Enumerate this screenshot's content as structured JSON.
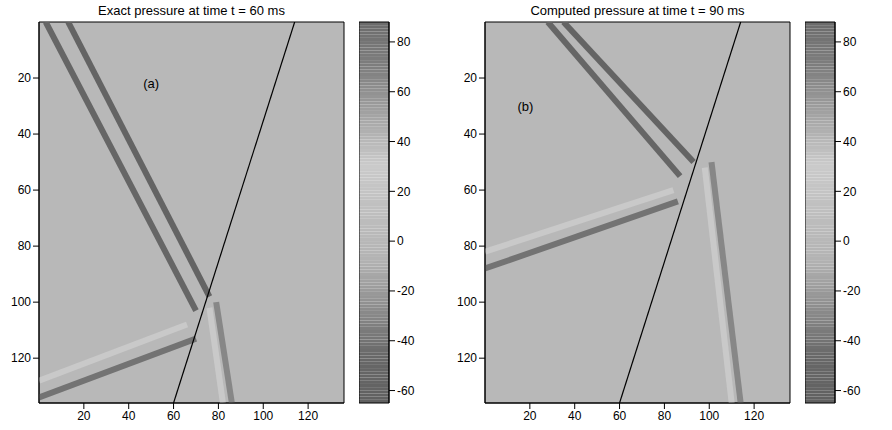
{
  "chart_data": [
    {
      "type": "heatmap",
      "title": "Exact pressure at time t = 60 ms",
      "xlim": [
        0,
        136
      ],
      "ylim": [
        136,
        0
      ],
      "xticks": [
        20,
        40,
        60,
        80,
        100,
        120
      ],
      "yticks": [
        20,
        40,
        60,
        80,
        100,
        120
      ],
      "annotations": [
        {
          "text": "(a)",
          "x": 50,
          "y": 22
        }
      ],
      "colorbar": {
        "range": [
          -65,
          88
        ],
        "ticks": [
          -60,
          -40,
          -20,
          0,
          20,
          40,
          60,
          80
        ]
      },
      "background": 40,
      "bands": [
        {
          "x": [
            3,
            70
          ],
          "y": [
            0,
            103
          ],
          "value": -50
        },
        {
          "x": [
            13,
            76
          ],
          "y": [
            0,
            98
          ],
          "value": -55
        },
        {
          "x": [
            0,
            66
          ],
          "y": [
            128,
            108
          ],
          "value": 28
        },
        {
          "x": [
            0,
            70
          ],
          "y": [
            134,
            113
          ],
          "value": -40
        },
        {
          "x": [
            76,
            82
          ],
          "y": [
            102,
            136
          ],
          "value": 28
        },
        {
          "x": [
            79,
            86
          ],
          "y": [
            100,
            136
          ],
          "value": -30
        }
      ],
      "interface": {
        "x": [
          60,
          114
        ],
        "y": [
          136,
          0
        ]
      }
    },
    {
      "type": "heatmap",
      "title": "Computed pressure at time t = 90 ms",
      "xlim": [
        0,
        136
      ],
      "ylim": [
        136,
        0
      ],
      "xticks": [
        20,
        40,
        60,
        80,
        100,
        120
      ],
      "yticks": [
        20,
        40,
        60,
        80,
        100,
        120
      ],
      "annotations": [
        {
          "text": "(b)",
          "x": 18,
          "y": 30
        }
      ],
      "colorbar": {
        "range": [
          -65,
          88
        ],
        "ticks": [
          -60,
          -40,
          -20,
          0,
          20,
          40,
          60,
          80
        ]
      },
      "background": 40,
      "bands": [
        {
          "x": [
            28,
            87
          ],
          "y": [
            0,
            55
          ],
          "value": -50
        },
        {
          "x": [
            35,
            93
          ],
          "y": [
            0,
            50
          ],
          "value": -55
        },
        {
          "x": [
            0,
            84
          ],
          "y": [
            82,
            60
          ],
          "value": 28
        },
        {
          "x": [
            0,
            86
          ],
          "y": [
            88,
            64
          ],
          "value": -40
        },
        {
          "x": [
            98,
            110
          ],
          "y": [
            52,
            136
          ],
          "value": 28
        },
        {
          "x": [
            101,
            114
          ],
          "y": [
            50,
            136
          ],
          "value": -30
        }
      ],
      "interface": {
        "x": [
          60,
          114
        ],
        "y": [
          136,
          0
        ]
      }
    }
  ]
}
